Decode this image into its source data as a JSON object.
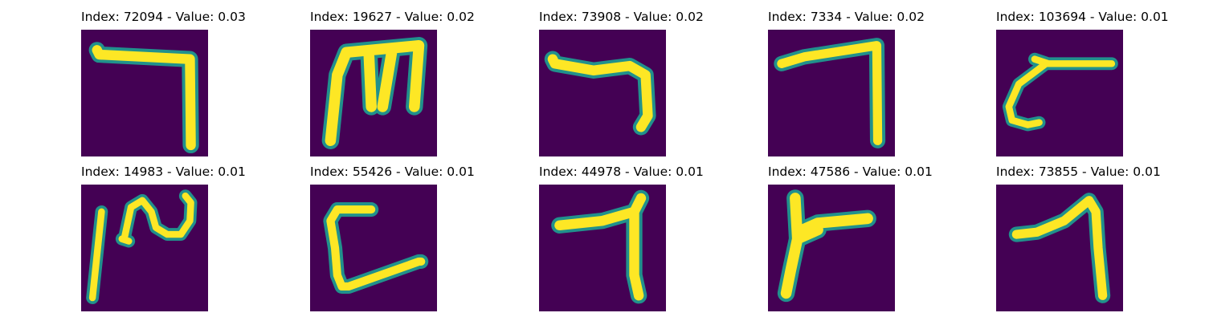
{
  "colors": {
    "background": "#440154",
    "mid": "#21918c",
    "teal": "#35b779",
    "stroke": "#fde725"
  },
  "panels": [
    {
      "title": "Index: 72094 - Value: 0.03",
      "icon": "digit-7-icon"
    },
    {
      "title": "Index: 19627 - Value: 0.02",
      "icon": "digit-m-icon"
    },
    {
      "title": "Index: 73908 - Value: 0.02",
      "icon": "digit-7-icon"
    },
    {
      "title": "Index: 7334 - Value: 0.02",
      "icon": "digit-7-icon"
    },
    {
      "title": "Index: 103694 - Value: 0.01",
      "icon": "digit-curve-icon"
    },
    {
      "title": "Index: 14983 - Value: 0.01",
      "icon": "digit-wave-icon"
    },
    {
      "title": "Index: 55426 - Value: 0.01",
      "icon": "digit-c-icon"
    },
    {
      "title": "Index: 44978 - Value: 0.01",
      "icon": "digit-7-icon"
    },
    {
      "title": "Index: 47586 - Value: 0.01",
      "icon": "digit-t-icon"
    },
    {
      "title": "Index: 73855 - Value: 0.01",
      "icon": "digit-7-icon"
    }
  ]
}
